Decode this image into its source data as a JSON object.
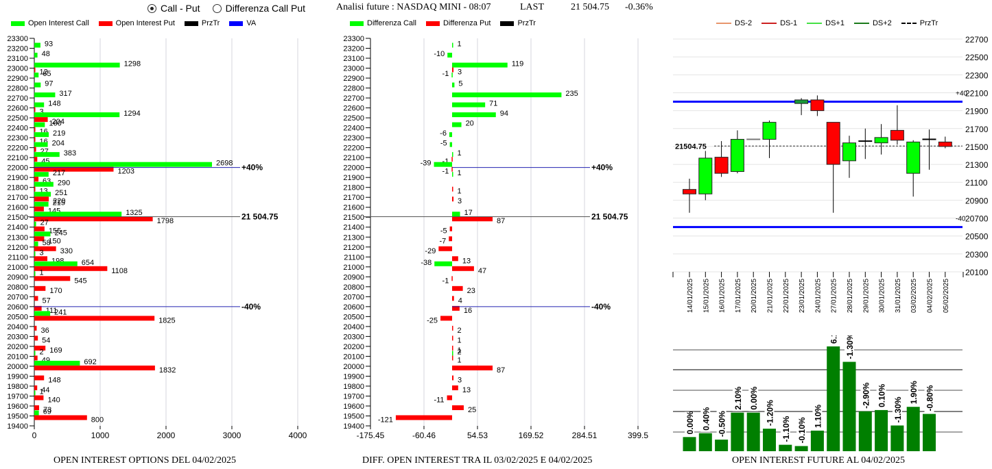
{
  "header": {
    "mode_options": [
      {
        "label": "Call - Put",
        "selected": true
      },
      {
        "label": "Differenza Call Put",
        "selected": false
      }
    ],
    "title": "Analisi future : NASDAQ MINI - 08:07",
    "last_label": "LAST",
    "last_value": "21 504.75",
    "change": "-0.36%"
  },
  "colors": {
    "call": "#00ff00",
    "put": "#ff0000",
    "przTr": "#000000",
    "va": "#0000ff",
    "ds_minus2": "#e8956b",
    "ds_minus1": "#cc1f1f",
    "ds_plus1": "#44e044",
    "ds_plus2": "#1a7a1a",
    "oi_bar": "#007f00"
  },
  "chart_data": [
    {
      "id": "oi-options",
      "type": "bar",
      "orientation": "horizontal",
      "title": "OPEN INTEREST OPTIONS DEL 04/02/2025",
      "legend": [
        "Open Interest Call",
        "Open Interest Put",
        "PrzTr",
        "VA"
      ],
      "legend_position": "top",
      "categories": [
        "23300",
        "23200",
        "23100",
        "23000",
        "22900",
        "22800",
        "22700",
        "22600",
        "22500",
        "22400",
        "22300",
        "22200",
        "22100",
        "22000",
        "21900",
        "21800",
        "21700",
        "21600",
        "21500",
        "21400",
        "21300",
        "21200",
        "21100",
        "21000",
        "20900",
        "20800",
        "20700",
        "20600",
        "20500",
        "20400",
        "20300",
        "20200",
        "20100",
        "20000",
        "19900",
        "19800",
        "19700",
        "19600",
        "19500",
        "19400"
      ],
      "series": [
        {
          "name": "Open Interest Call",
          "values": [
            null,
            93,
            48,
            1298,
            65,
            97,
            317,
            148,
            1294,
            160,
            219,
            204,
            383,
            2698,
            217,
            290,
            251,
            215,
            1325,
            27,
            245,
            58,
            3,
            654,
            1,
            null,
            null,
            null,
            241,
            null,
            null,
            null,
            2,
            692,
            null,
            null,
            1,
            null,
            69,
            null
          ]
        },
        {
          "name": "Open Interest Put",
          "values": [
            null,
            null,
            null,
            12,
            null,
            null,
            null,
            3,
            204,
            16,
            16,
            27,
            45,
            1203,
            63,
            13,
            220,
            145,
            1798,
            155,
            150,
            330,
            198,
            1108,
            545,
            170,
            57,
            111,
            1825,
            36,
            54,
            169,
            49,
            1832,
            148,
            44,
            140,
            73,
            800,
            null
          ]
        }
      ],
      "xlim": [
        0,
        4000
      ],
      "xticks": [
        "0",
        "1000",
        "2000",
        "3000",
        "4000"
      ],
      "reference_lines": [
        {
          "label": "+40%",
          "strike": 22000
        },
        {
          "label": "21 504.75",
          "strike": 21504.75
        },
        {
          "label": "-40%",
          "strike": 20600
        }
      ],
      "grid": true
    },
    {
      "id": "oi-diff",
      "type": "bar",
      "orientation": "horizontal",
      "title": "DIFF. OPEN INTEREST TRA IL 03/02/2025 E 04/02/2025",
      "legend": [
        "Differenza Call",
        "Differenza Put",
        "PrzTr"
      ],
      "legend_position": "top",
      "categories": [
        "23300",
        "23200",
        "23100",
        "23000",
        "22900",
        "22800",
        "22700",
        "22600",
        "22500",
        "22400",
        "22300",
        "22200",
        "22100",
        "22000",
        "21900",
        "21800",
        "21700",
        "21600",
        "21500",
        "21400",
        "21300",
        "21200",
        "21100",
        "21000",
        "20900",
        "20800",
        "20700",
        "20600",
        "20500",
        "20400",
        "20300",
        "20200",
        "20100",
        "20000",
        "19900",
        "19800",
        "19700",
        "19600",
        "19500",
        "19400"
      ],
      "series": [
        {
          "name": "Differenza Call",
          "values": [
            null,
            1,
            -10,
            119,
            -1,
            5,
            235,
            71,
            94,
            20,
            -6,
            -5,
            1,
            -39,
            1,
            null,
            null,
            null,
            17,
            null,
            null,
            null,
            null,
            -38,
            null,
            null,
            null,
            null,
            null,
            null,
            null,
            null,
            2,
            null,
            null,
            null,
            null,
            null,
            null,
            null
          ]
        },
        {
          "name": "Differenza Put",
          "values": [
            null,
            null,
            null,
            3,
            null,
            null,
            null,
            null,
            null,
            null,
            null,
            null,
            -1,
            -1,
            null,
            1,
            3,
            null,
            87,
            -5,
            -7,
            -29,
            13,
            47,
            -1,
            23,
            4,
            16,
            -25,
            2,
            1,
            1,
            1,
            87,
            3,
            13,
            -11,
            25,
            -121,
            null
          ]
        }
      ],
      "xlim": [
        -175.45,
        399.5
      ],
      "xticks": [
        "-175.45",
        "-60.46",
        "54.53",
        "169.52",
        "284.51",
        "399.5"
      ],
      "reference_lines": [
        {
          "label": "+40%",
          "strike": 22000
        },
        {
          "label": "21 504.75",
          "strike": 21504.75
        },
        {
          "label": "-40%",
          "strike": 20600
        }
      ],
      "grid": true
    },
    {
      "id": "future-candles",
      "type": "candlestick",
      "legend": [
        "DS-2",
        "DS-1",
        "DS+1",
        "DS+2",
        "PrzTr"
      ],
      "legend_position": "top",
      "ylim": [
        20100,
        22700
      ],
      "yticks": [
        "22700",
        "22500",
        "22300",
        "22100",
        "21900",
        "21700",
        "21500",
        "21300",
        "21100",
        "20900",
        "20700",
        "20500",
        "20300",
        "20100"
      ],
      "price_label": "21504.75",
      "price_line": 21504.75,
      "band_upper": {
        "label": "+40",
        "value": 22000
      },
      "band_lower": {
        "label": "-40",
        "value": 20600
      },
      "categories": [
        "14/01/2025",
        "15/01/2025",
        "16/01/2025",
        "17/01/2025",
        "20/01/2025",
        "21/01/2025",
        "22/01/2025",
        "23/01/2025",
        "24/01/2025",
        "27/01/2025",
        "28/01/2025",
        "29/01/2025",
        "30/01/2025",
        "31/01/2025",
        "03/02/2025",
        "04/02/2025",
        "05/02/2025"
      ],
      "candles": [
        {
          "date": "14/01/2025",
          "open": 21020,
          "high": 21140,
          "low": 20760,
          "close": 20970
        },
        {
          "date": "15/01/2025",
          "open": 20970,
          "high": 21450,
          "low": 20900,
          "close": 21370
        },
        {
          "date": "16/01/2025",
          "open": 21380,
          "high": 21560,
          "low": 21160,
          "close": 21200
        },
        {
          "date": "17/01/2025",
          "open": 21220,
          "high": 21680,
          "low": 21200,
          "close": 21580
        },
        {
          "date": "20/01/2025",
          "open": 21580,
          "high": 21580,
          "low": 21580,
          "close": 21580
        },
        {
          "date": "21/01/2025",
          "open": 21580,
          "high": 21790,
          "low": 21370,
          "close": 21770
        },
        {
          "date": "22/01/2025",
          "open": null,
          "high": null,
          "low": null,
          "close": null
        },
        {
          "date": "23/01/2025",
          "open": 21980,
          "high": 22040,
          "low": 21850,
          "close": 22020
        },
        {
          "date": "24/01/2025",
          "open": 22020,
          "high": 22070,
          "low": 21840,
          "close": 21900
        },
        {
          "date": "27/01/2025",
          "open": 21770,
          "high": 21770,
          "low": 20760,
          "close": 21300
        },
        {
          "date": "28/01/2025",
          "open": 21340,
          "high": 21620,
          "low": 21150,
          "close": 21540
        },
        {
          "date": "29/01/2025",
          "open": 21550,
          "high": 21700,
          "low": 21360,
          "close": 21560
        },
        {
          "date": "30/01/2025",
          "open": 21540,
          "high": 21750,
          "low": 21410,
          "close": 21600
        },
        {
          "date": "31/01/2025",
          "open": 21680,
          "high": 21960,
          "low": 21520,
          "close": 21570
        },
        {
          "date": "03/02/2025",
          "open": 21200,
          "high": 21570,
          "low": 20940,
          "close": 21550
        },
        {
          "date": "04/02/2025",
          "open": 21580,
          "high": 21690,
          "low": 21240,
          "close": 21580
        },
        {
          "date": "05/02/2025",
          "open": 21550,
          "high": 21610,
          "low": 21480,
          "close": 21500
        }
      ],
      "grid": true
    },
    {
      "id": "oi-future",
      "type": "bar",
      "title": "OPEN INTEREST FUTURE AL 04/02/2025",
      "categories": [
        "14/01/2025",
        "15/01/2025",
        "16/01/2025",
        "17/01/2025",
        "20/01/2025",
        "21/01/2025",
        "22/01/2025",
        "23/01/2025",
        "24/01/2025",
        "27/01/2025",
        "28/01/2025",
        "29/01/2025",
        "30/01/2025",
        "31/01/2025",
        "03/02/2025",
        "04/02/2025"
      ],
      "values": [
        0.22,
        0.28,
        0.18,
        0.6,
        0.6,
        0.35,
        0.1,
        0.08,
        0.32,
        1.63,
        1.39,
        0.62,
        0.64,
        0.4,
        0.69,
        0.58
      ],
      "data_labels": [
        "0.00%",
        "0.40%",
        "-0.50%",
        "2.10%",
        "0.00%",
        "-1.20%",
        "-1.10%",
        "-0.10%",
        "1.10%",
        "6.10%",
        "-1.30%",
        "-2.90%",
        "0.10%",
        "-1.30%",
        "1.90%",
        "-0.80%"
      ],
      "ylim": [
        0,
        1.8
      ],
      "grid": true
    }
  ]
}
